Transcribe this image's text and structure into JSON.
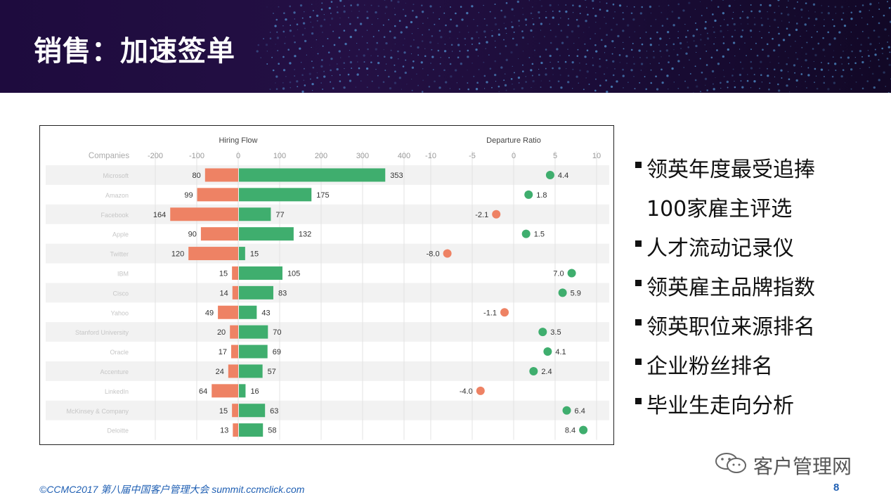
{
  "slide": {
    "title": "销售：加速签单",
    "bullets": [
      {
        "text": "领英年度最受追捧",
        "marker": true
      },
      {
        "text": "100家雇主评选",
        "marker": false
      },
      {
        "text": "人才流动记录仪",
        "marker": true
      },
      {
        "text": "领英雇主品牌指数",
        "marker": true
      },
      {
        "text": "领英职位来源排名",
        "marker": true
      },
      {
        "text": "企业粉丝排名",
        "marker": true
      },
      {
        "text": "毕业生走向分析",
        "marker": true
      }
    ],
    "watermark": "客户管理网",
    "footer": "©CCMC2017  第八届中国客户管理大会 summit.ccmclick.com",
    "page_number": "8"
  },
  "colors": {
    "positive": "#3fae6e",
    "negative": "#ee8264",
    "row_shade": "#f2f2f2",
    "banner": "#1e0b3e",
    "footer_text": "#1f5fb3"
  },
  "chart_data": [
    {
      "type": "bar",
      "title": "Hiring Flow",
      "row_header": "Companies",
      "xlim": [
        -200,
        400
      ],
      "ticks": [
        -200,
        -100,
        0,
        100,
        200,
        300,
        400
      ],
      "categories": [
        "Microsoft",
        "Amazon",
        "Facebook",
        "Apple",
        "Twitter",
        "IBM",
        "Cisco",
        "Yahoo",
        "Stanford University",
        "Oracle",
        "Accenture",
        "LinkedIn",
        "McKinsey & Company",
        "Deloitte"
      ],
      "series": [
        {
          "sign": "negative",
          "values": [
            80,
            99,
            164,
            90,
            120,
            15,
            14,
            49,
            20,
            17,
            24,
            64,
            15,
            13
          ]
        },
        {
          "sign": "positive",
          "values": [
            353,
            175,
            77,
            132,
            15,
            105,
            83,
            43,
            70,
            69,
            57,
            16,
            63,
            58
          ]
        }
      ]
    },
    {
      "type": "scatter",
      "title": "Departure Ratio",
      "xlim": [
        -10,
        10
      ],
      "ticks": [
        -10,
        -5,
        0,
        5,
        10
      ],
      "values": [
        4.4,
        1.8,
        -2.1,
        1.5,
        -8.0,
        7.0,
        5.9,
        -1.1,
        3.5,
        4.1,
        2.4,
        -4.0,
        6.4,
        8.4
      ],
      "value_labels": [
        "4.4",
        "1.8",
        "-2.1",
        "1.5",
        "-8.0",
        "7.0",
        "5.9",
        "-1.1",
        "3.5",
        "4.1",
        "2.4",
        "-4.0",
        "6.4",
        "8.4"
      ]
    }
  ]
}
